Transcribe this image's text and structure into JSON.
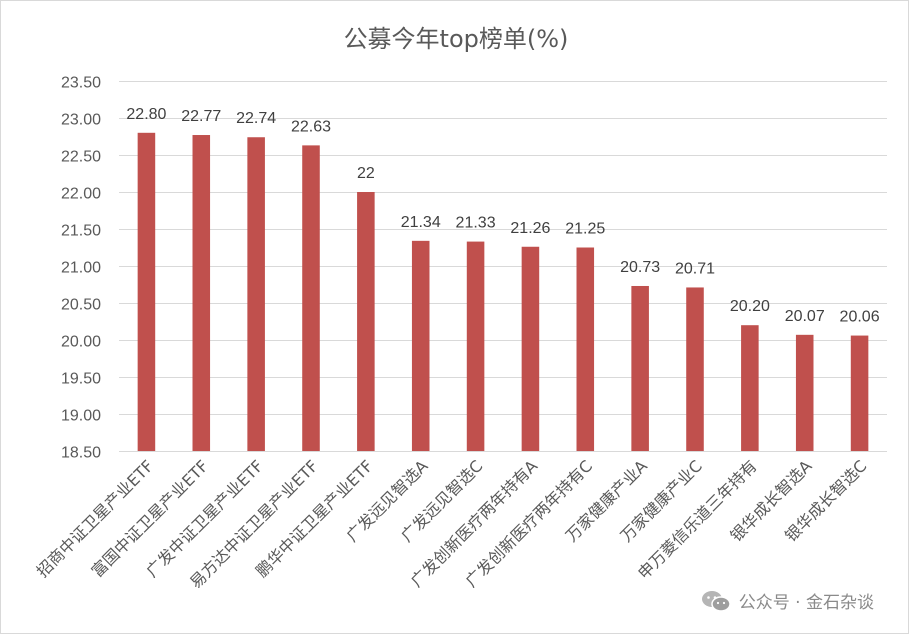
{
  "chart_data": {
    "type": "bar",
    "title": "公募今年top榜单(%)",
    "categories": [
      "招商中证卫星产业ETF",
      "富国中证卫星产业ETF",
      "广发中证卫星产业ETF",
      "易方达中证卫星产业ETF",
      "鹏华中证卫星产业ETF",
      "广发远见智选A",
      "广发远见智选C",
      "广发创新医疗两年持有A",
      "广发创新医疗两年持有C",
      "万家健康产业A",
      "万家健康产业C",
      "申万菱信乐道三年持有",
      "银华成长智选A",
      "银华成长智选C"
    ],
    "values": [
      22.8,
      22.77,
      22.74,
      22.63,
      22.0,
      21.34,
      21.33,
      21.26,
      21.25,
      20.73,
      20.71,
      20.2,
      20.07,
      20.06
    ],
    "data_labels": [
      "22.80",
      "22.77",
      "22.74",
      "22.63",
      "22",
      "21.34",
      "21.33",
      "21.26",
      "21.25",
      "20.73",
      "20.71",
      "20.20",
      "20.07",
      "20.06"
    ],
    "ylim": [
      18.5,
      23.5
    ],
    "yticks": [
      "18.50",
      "19.00",
      "19.50",
      "20.00",
      "20.50",
      "21.00",
      "21.50",
      "22.00",
      "22.50",
      "23.00",
      "23.50"
    ],
    "ytick_values": [
      18.5,
      19.0,
      19.5,
      20.0,
      20.5,
      21.0,
      21.5,
      22.0,
      22.5,
      23.0,
      23.5
    ],
    "grid": true,
    "legend": "none",
    "bar_color": "#c0504d"
  },
  "watermark": {
    "text": "公众号 · 金石杂谈",
    "icon": "wechat-icon"
  }
}
